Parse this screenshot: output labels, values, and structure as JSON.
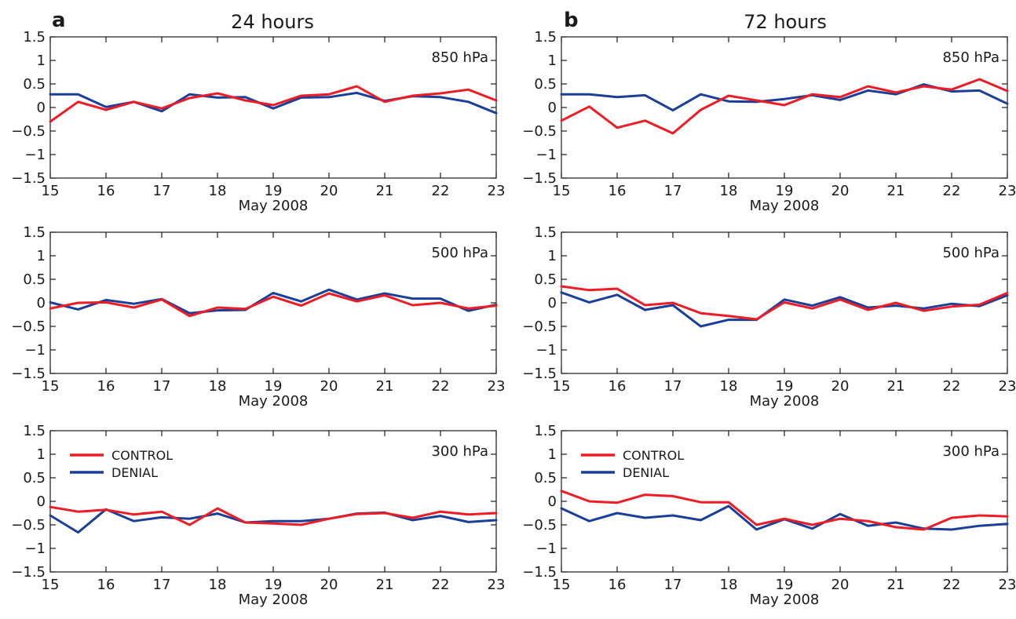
{
  "colors": {
    "control": "#ee1c25",
    "denial": "#1b3f99"
  },
  "columns": [
    {
      "letter": "a",
      "title": "24 hours"
    },
    {
      "letter": "b",
      "title": "72 hours"
    }
  ],
  "legend": {
    "control_label": "CONTROL",
    "denial_label": "DENIAL"
  },
  "chart_data": [
    {
      "type": "line",
      "panel": "a-850",
      "level_label": "850 hPa",
      "xlabel": "May 2008",
      "xlim": [
        15,
        23
      ],
      "ylim": [
        -1.5,
        1.5
      ],
      "xticks": [
        15,
        16,
        17,
        18,
        19,
        20,
        21,
        22,
        23
      ],
      "yticks": [
        -1.5,
        -1,
        -0.5,
        0,
        0.5,
        1,
        1.5
      ],
      "x": [
        15,
        15.5,
        16,
        16.5,
        17,
        17.5,
        18,
        18.5,
        19,
        19.5,
        20,
        20.5,
        21,
        21.5,
        22,
        22.5,
        23
      ],
      "series": [
        {
          "name": "CONTROL",
          "values": [
            -0.3,
            0.12,
            -0.05,
            0.12,
            -0.02,
            0.2,
            0.3,
            0.15,
            0.05,
            0.25,
            0.28,
            0.45,
            0.12,
            0.25,
            0.3,
            0.38,
            0.15
          ]
        },
        {
          "name": "DENIAL",
          "values": [
            0.28,
            0.28,
            0.01,
            0.12,
            -0.08,
            0.28,
            0.21,
            0.22,
            -0.02,
            0.21,
            0.22,
            0.31,
            0.14,
            0.24,
            0.22,
            0.12,
            -0.12
          ]
        }
      ]
    },
    {
      "type": "line",
      "panel": "b-850",
      "level_label": "850 hPa",
      "xlabel": "May 2008",
      "xlim": [
        15,
        23
      ],
      "ylim": [
        -1.5,
        1.5
      ],
      "xticks": [
        15,
        16,
        17,
        18,
        19,
        20,
        21,
        22,
        23
      ],
      "yticks": [
        -1.5,
        -1,
        -0.5,
        0,
        0.5,
        1,
        1.5
      ],
      "x": [
        15,
        15.5,
        16,
        16.5,
        17,
        17.5,
        18,
        18.5,
        19,
        19.5,
        20,
        20.5,
        21,
        21.5,
        22,
        22.5,
        23
      ],
      "series": [
        {
          "name": "CONTROL",
          "values": [
            -0.28,
            0.02,
            -0.43,
            -0.28,
            -0.55,
            -0.05,
            0.25,
            0.15,
            0.05,
            0.28,
            0.22,
            0.45,
            0.32,
            0.45,
            0.38,
            0.6,
            0.35
          ]
        },
        {
          "name": "DENIAL",
          "values": [
            0.28,
            0.28,
            0.22,
            0.26,
            -0.06,
            0.28,
            0.13,
            0.12,
            0.18,
            0.26,
            0.16,
            0.36,
            0.28,
            0.49,
            0.34,
            0.36,
            0.08
          ]
        }
      ]
    },
    {
      "type": "line",
      "panel": "a-500",
      "level_label": "500 hPa",
      "xlabel": "May 2008",
      "xlim": [
        15,
        23
      ],
      "ylim": [
        -1.5,
        1.5
      ],
      "xticks": [
        15,
        16,
        17,
        18,
        19,
        20,
        21,
        22,
        23
      ],
      "yticks": [
        -1.5,
        -1,
        -0.5,
        0,
        0.5,
        1,
        1.5
      ],
      "x": [
        15,
        15.5,
        16,
        16.5,
        17,
        17.5,
        18,
        18.5,
        19,
        19.5,
        20,
        20.5,
        21,
        21.5,
        22,
        22.5,
        23
      ],
      "series": [
        {
          "name": "CONTROL",
          "values": [
            -0.12,
            0.0,
            0.01,
            -0.1,
            0.07,
            -0.28,
            -0.1,
            -0.13,
            0.13,
            -0.06,
            0.2,
            0.03,
            0.16,
            -0.05,
            0.0,
            -0.12,
            -0.06
          ]
        },
        {
          "name": "DENIAL",
          "values": [
            0.01,
            -0.14,
            0.06,
            -0.02,
            0.08,
            -0.22,
            -0.16,
            -0.15,
            0.21,
            0.03,
            0.28,
            0.07,
            0.2,
            0.09,
            0.09,
            -0.17,
            -0.04
          ]
        }
      ]
    },
    {
      "type": "line",
      "panel": "b-500",
      "level_label": "500 hPa",
      "xlabel": "May 2008",
      "xlim": [
        15,
        23
      ],
      "ylim": [
        -1.5,
        1.5
      ],
      "xticks": [
        15,
        16,
        17,
        18,
        19,
        20,
        21,
        22,
        23
      ],
      "yticks": [
        -1.5,
        -1,
        -0.5,
        0,
        0.5,
        1,
        1.5
      ],
      "x": [
        15,
        15.5,
        16,
        16.5,
        17,
        17.5,
        18,
        18.5,
        19,
        19.5,
        20,
        20.5,
        21,
        21.5,
        22,
        22.5,
        23
      ],
      "series": [
        {
          "name": "CONTROL",
          "values": [
            0.35,
            0.27,
            0.3,
            -0.05,
            0.0,
            -0.22,
            -0.28,
            -0.35,
            0.01,
            -0.12,
            0.07,
            -0.15,
            0.0,
            -0.17,
            -0.08,
            -0.04,
            0.21
          ]
        },
        {
          "name": "DENIAL",
          "values": [
            0.22,
            0.01,
            0.17,
            -0.15,
            -0.05,
            -0.5,
            -0.36,
            -0.36,
            0.07,
            -0.06,
            0.12,
            -0.1,
            -0.06,
            -0.12,
            -0.02,
            -0.07,
            0.16
          ]
        }
      ]
    },
    {
      "type": "line",
      "panel": "a-300",
      "level_label": "300 hPa",
      "xlabel": "May 2008",
      "xlim": [
        15,
        23
      ],
      "ylim": [
        -1.5,
        1.5
      ],
      "xticks": [
        15,
        16,
        17,
        18,
        19,
        20,
        21,
        22,
        23
      ],
      "yticks": [
        -1.5,
        -1,
        -0.5,
        0,
        0.5,
        1,
        1.5
      ],
      "legend_location": "upper-left",
      "x": [
        15,
        15.5,
        16,
        16.5,
        17,
        17.5,
        18,
        18.5,
        19,
        19.5,
        20,
        20.5,
        21,
        21.5,
        22,
        22.5,
        23
      ],
      "series": [
        {
          "name": "CONTROL",
          "values": [
            -0.12,
            -0.22,
            -0.18,
            -0.28,
            -0.22,
            -0.5,
            -0.15,
            -0.45,
            -0.47,
            -0.5,
            -0.37,
            -0.27,
            -0.25,
            -0.35,
            -0.22,
            -0.28,
            -0.25
          ]
        },
        {
          "name": "DENIAL",
          "values": [
            -0.3,
            -0.66,
            -0.17,
            -0.42,
            -0.34,
            -0.37,
            -0.26,
            -0.45,
            -0.42,
            -0.42,
            -0.37,
            -0.26,
            -0.24,
            -0.4,
            -0.31,
            -0.44,
            -0.4
          ]
        }
      ]
    },
    {
      "type": "line",
      "panel": "b-300",
      "level_label": "300 hPa",
      "xlabel": "May 2008",
      "xlim": [
        15,
        23
      ],
      "ylim": [
        -1.5,
        1.5
      ],
      "xticks": [
        15,
        16,
        17,
        18,
        19,
        20,
        21,
        22,
        23
      ],
      "yticks": [
        -1.5,
        -1,
        -0.5,
        0,
        0.5,
        1,
        1.5
      ],
      "legend_location": "upper-left",
      "x": [
        15,
        15.5,
        16,
        16.5,
        17,
        17.5,
        18,
        18.5,
        19,
        19.5,
        20,
        20.5,
        21,
        21.5,
        22,
        22.5,
        23
      ],
      "series": [
        {
          "name": "CONTROL",
          "values": [
            0.22,
            0.0,
            -0.03,
            0.14,
            0.11,
            -0.02,
            -0.02,
            -0.5,
            -0.37,
            -0.5,
            -0.37,
            -0.42,
            -0.55,
            -0.6,
            -0.35,
            -0.3,
            -0.32
          ]
        },
        {
          "name": "DENIAL",
          "values": [
            -0.15,
            -0.42,
            -0.25,
            -0.35,
            -0.3,
            -0.4,
            -0.1,
            -0.6,
            -0.38,
            -0.58,
            -0.27,
            -0.52,
            -0.45,
            -0.58,
            -0.6,
            -0.52,
            -0.48
          ]
        }
      ]
    }
  ]
}
